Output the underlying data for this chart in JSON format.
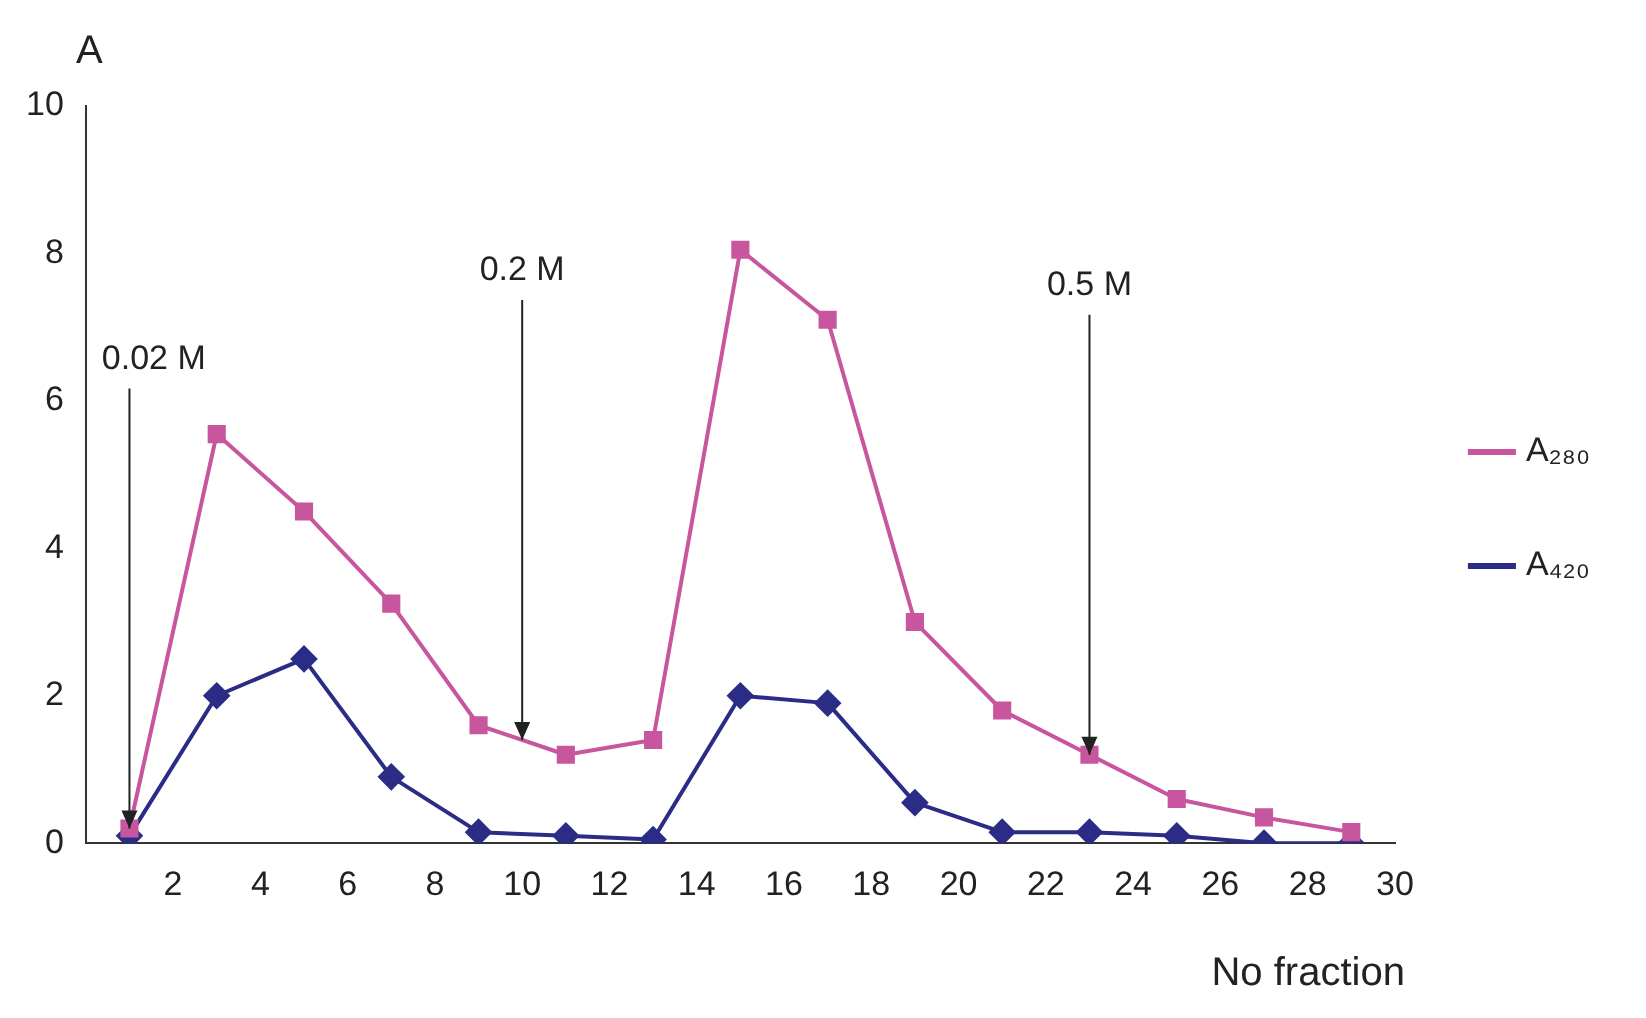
{
  "chart_data": {
    "type": "line",
    "xlabel": "No fraction",
    "ylabel": "A",
    "x": [
      1,
      3,
      5,
      7,
      9,
      11,
      13,
      15,
      17,
      19,
      21,
      23,
      25,
      27,
      29
    ],
    "series": [
      {
        "name": "A₂₈₀",
        "color": "#c8569f",
        "marker": "square",
        "values": [
          0.2,
          5.55,
          4.5,
          3.25,
          1.6,
          1.2,
          1.4,
          8.05,
          7.1,
          3.0,
          1.8,
          1.2,
          0.6,
          0.35,
          0.15
        ]
      },
      {
        "name": "A₄₂₀",
        "color": "#2b2c86",
        "marker": "diamond",
        "values": [
          0.1,
          2.0,
          2.5,
          0.9,
          0.15,
          0.1,
          0.05,
          2.0,
          1.9,
          0.55,
          0.15,
          0.15,
          0.1,
          0,
          0
        ]
      }
    ],
    "xlim": [
      0,
      30
    ],
    "xticks": [
      2,
      4,
      6,
      8,
      10,
      12,
      14,
      16,
      18,
      20,
      22,
      24,
      26,
      28,
      30
    ],
    "ylim": [
      0,
      10
    ],
    "yticks": [
      0,
      2,
      4,
      6,
      8,
      10
    ],
    "annotations": [
      {
        "text": "0.02 M",
        "x": 1,
        "y": 0.2
      },
      {
        "text": "0.2 M",
        "x": 10,
        "y": 1.4
      },
      {
        "text": "0.5 M",
        "x": 23,
        "y": 1.2
      }
    ],
    "grid": false,
    "legend": "right",
    "line_style": "solid"
  }
}
